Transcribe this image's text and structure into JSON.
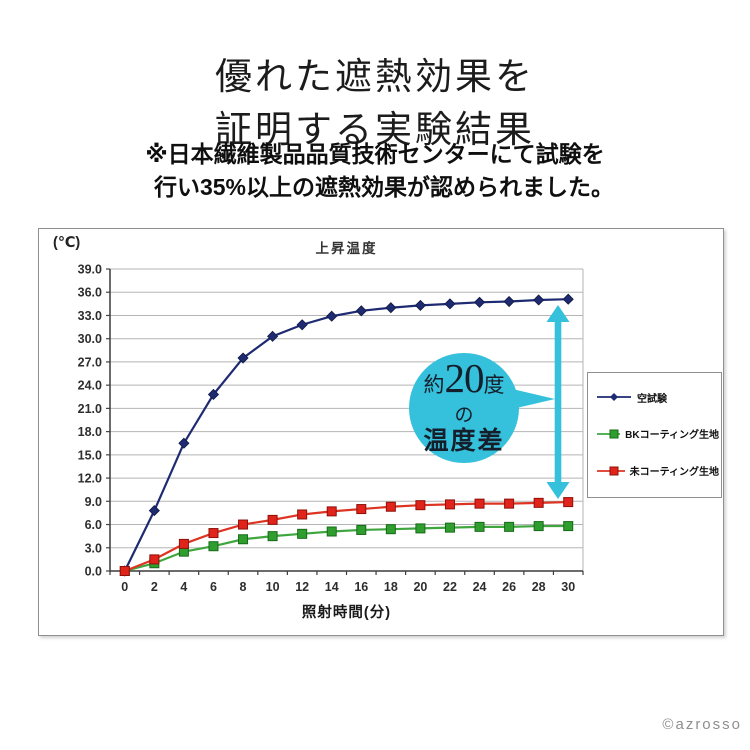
{
  "page": {
    "title": {
      "line1": "優れた遮熱効果を",
      "line2": "証明する実験結果"
    },
    "subtitle": {
      "line1": "※日本繊維製品品質技術センターにて試験を",
      "line2": "行い35%以上の遮熱効果が認められました。"
    },
    "copyright": "©azrosso"
  },
  "chart": {
    "unit_label": "(℃)",
    "title": "上昇温度",
    "xlabel": "照射時間(分)"
  },
  "annotation": {
    "prefix": "約",
    "big": "20",
    "suffix": "度",
    "mid": "の",
    "bottom": "温度差",
    "bubble_color": "#35c1dc",
    "arrow_color": "#35c1dc"
  },
  "chart_data": {
    "type": "line",
    "title": "上昇温度",
    "xlabel": "照射時間(分)",
    "ylabel": "(℃)",
    "x": [
      0,
      2,
      4,
      6,
      8,
      10,
      12,
      14,
      16,
      18,
      20,
      22,
      24,
      26,
      28,
      30
    ],
    "ylim": [
      0,
      39
    ],
    "ytick_step": 3,
    "grid": "horizontal",
    "legend_position": "right",
    "series": [
      {
        "name": "空試験",
        "color": "#1e2a72",
        "marker": "diamond",
        "marker_fill": "#1e2a72",
        "marker_stroke": "#10183f",
        "values": [
          0.0,
          7.8,
          16.5,
          22.8,
          27.5,
          30.3,
          31.8,
          32.9,
          33.6,
          34.0,
          34.3,
          34.5,
          34.7,
          34.8,
          35.0,
          35.1
        ]
      },
      {
        "name": "BKコーティング生地",
        "color": "#3fa63f",
        "marker": "square",
        "marker_fill": "#2f9e2f",
        "marker_stroke": "#176b17",
        "values": [
          0.0,
          1.0,
          2.5,
          3.2,
          4.1,
          4.5,
          4.8,
          5.1,
          5.3,
          5.4,
          5.5,
          5.6,
          5.7,
          5.7,
          5.8,
          5.8
        ]
      },
      {
        "name": "未コーティング生地",
        "color": "#dd3322",
        "marker": "square",
        "marker_fill": "#e0231b",
        "marker_stroke": "#8f1008",
        "values": [
          0.0,
          1.5,
          3.5,
          4.9,
          6.0,
          6.6,
          7.3,
          7.7,
          8.0,
          8.3,
          8.5,
          8.6,
          8.7,
          8.7,
          8.8,
          8.9
        ]
      }
    ]
  }
}
